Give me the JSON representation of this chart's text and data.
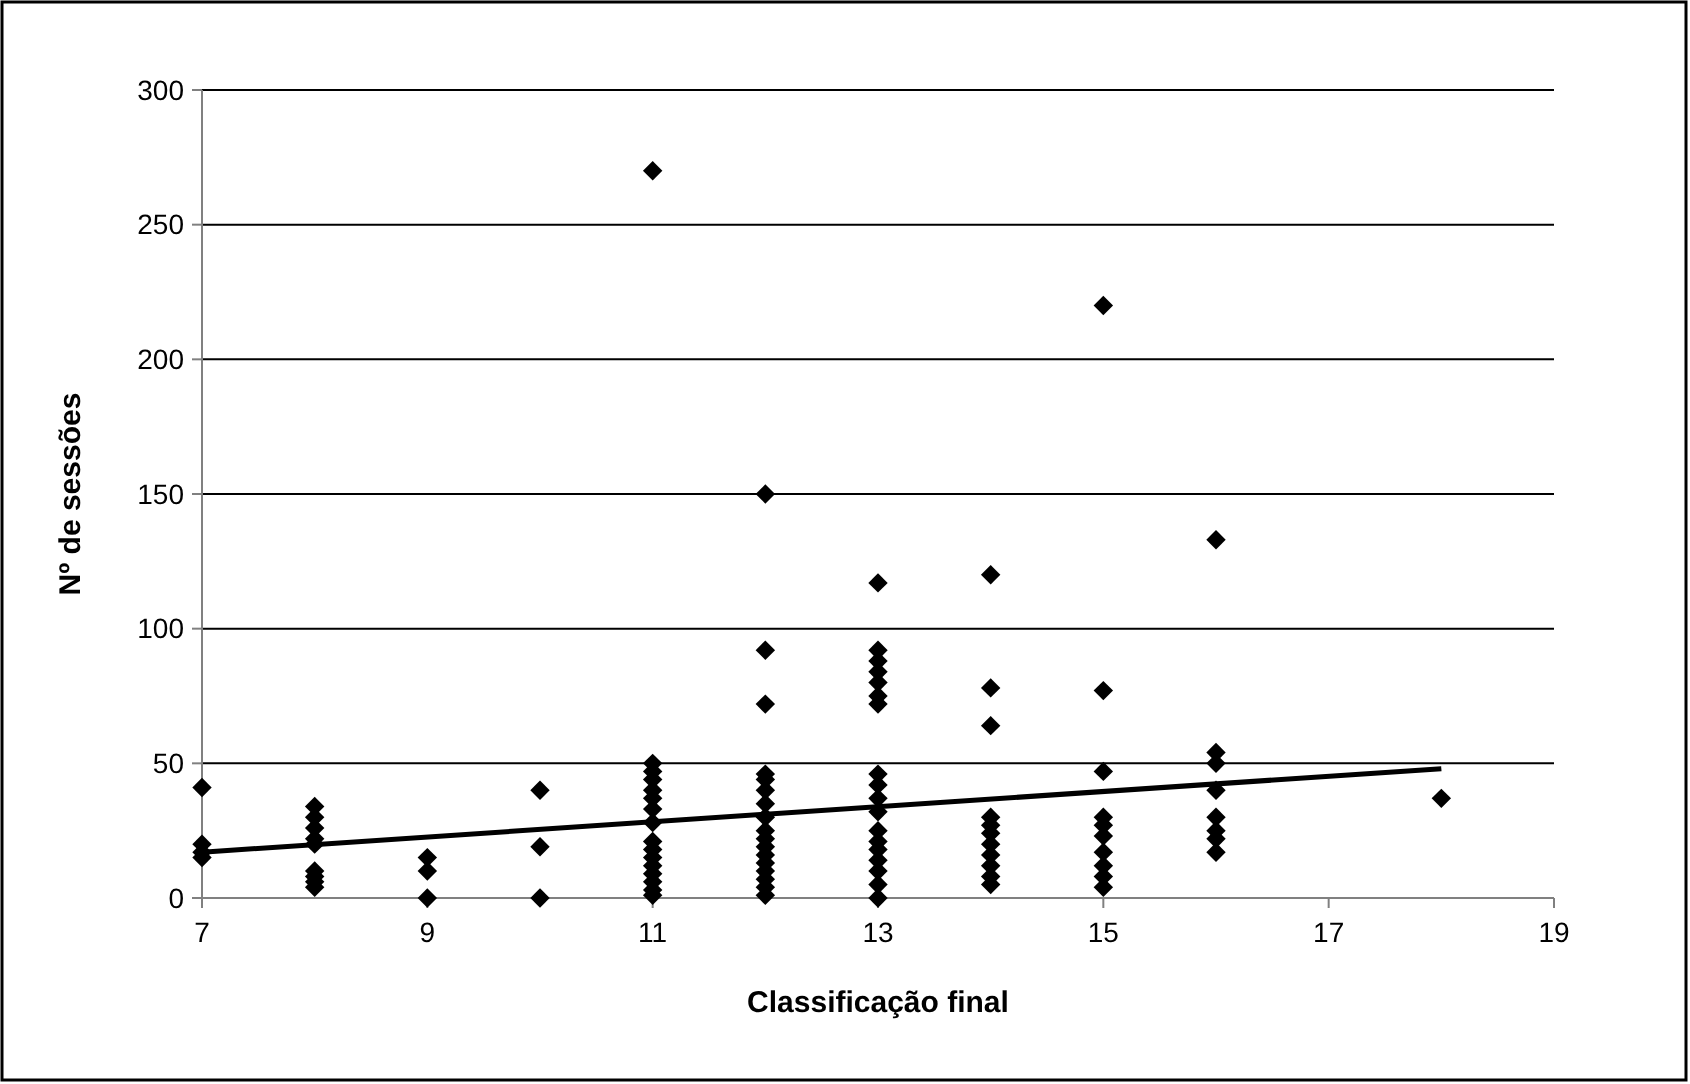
{
  "chart_data": {
    "type": "scatter",
    "xlabel": "Classificação final",
    "ylabel": "Nº de sessões",
    "xlim": [
      7,
      19
    ],
    "xticks": [
      7,
      9,
      11,
      13,
      15,
      17,
      19
    ],
    "ylim": [
      0,
      300
    ],
    "yticks": [
      0,
      50,
      100,
      150,
      200,
      250,
      300
    ],
    "grid": "y",
    "marker": "diamond",
    "series": [
      {
        "color": "#000000",
        "x": [
          7,
          7,
          7,
          7,
          8,
          8,
          8,
          8,
          8,
          8,
          8,
          8,
          8,
          9,
          9,
          9,
          10,
          10,
          10,
          11,
          11,
          11,
          11,
          11,
          11,
          11,
          11,
          11,
          11,
          11,
          11,
          11,
          11,
          11,
          11,
          12,
          12,
          12,
          12,
          12,
          12,
          12,
          12,
          12,
          12,
          12,
          12,
          12,
          12,
          12,
          12,
          12,
          13,
          13,
          13,
          13,
          13,
          13,
          13,
          13,
          13,
          13,
          13,
          13,
          13,
          13,
          13,
          13,
          13,
          13,
          14,
          14,
          14,
          14,
          14,
          14,
          14,
          14,
          14,
          14,
          14,
          15,
          15,
          15,
          15,
          15,
          15,
          15,
          15,
          15,
          15,
          16,
          16,
          16,
          16,
          16,
          16,
          16,
          16,
          18
        ],
        "values": [
          41,
          20,
          17,
          15,
          34,
          30,
          26,
          22,
          20,
          10,
          8,
          6,
          4,
          15,
          10,
          0,
          40,
          19,
          0,
          270,
          50,
          47,
          44,
          40,
          37,
          33,
          28,
          21,
          18,
          15,
          12,
          9,
          6,
          3,
          1,
          150,
          92,
          72,
          46,
          44,
          40,
          35,
          30,
          25,
          22,
          19,
          16,
          13,
          10,
          7,
          4,
          1,
          117,
          92,
          88,
          84,
          80,
          75,
          72,
          46,
          42,
          37,
          32,
          25,
          21,
          18,
          14,
          10,
          5,
          0,
          120,
          78,
          64,
          30,
          27,
          24,
          20,
          16,
          12,
          8,
          5,
          220,
          77,
          47,
          30,
          27,
          23,
          17,
          12,
          8,
          4,
          133,
          54,
          50,
          40,
          30,
          25,
          22,
          17,
          37
        ]
      },
      {
        "type": "line",
        "color": "#000000",
        "marker": "none",
        "x": [
          7,
          18
        ],
        "values": [
          17,
          48
        ]
      }
    ]
  }
}
